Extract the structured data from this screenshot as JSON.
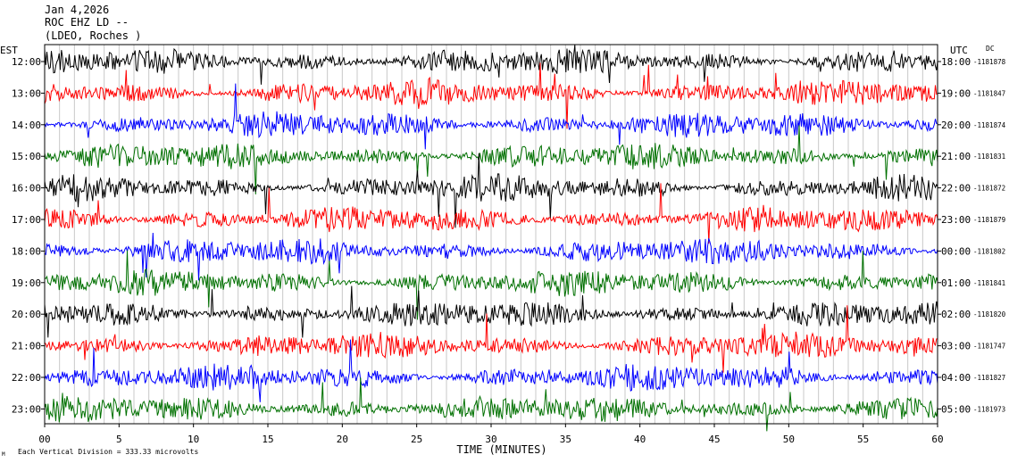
{
  "header": {
    "date": "Jan 4,2026",
    "station": "ROC EHZ LD --",
    "location": "(LDEO, Roches   )"
  },
  "left_axis_label": "EST",
  "right_axis_label": "UTC",
  "dc_label": "DC",
  "footer_note": "Each Vertical Division =  333.33 microvolts",
  "corner_mark": "M",
  "chart_data": {
    "type": "line",
    "xlabel": "TIME (MINUTES)",
    "xlim": [
      0,
      60
    ],
    "x_ticks": [
      "00",
      "5",
      "10",
      "15",
      "20",
      "25",
      "30",
      "35",
      "40",
      "45",
      "50",
      "55",
      "60"
    ],
    "grid": true,
    "series_colors": [
      "#000000",
      "#ff0000",
      "#0000ff",
      "#007000"
    ],
    "rows": [
      {
        "est": "12:00",
        "utc": "18:00",
        "dc": "-1181878"
      },
      {
        "est": "13:00",
        "utc": "19:00",
        "dc": "-1181847"
      },
      {
        "est": "14:00",
        "utc": "20:00",
        "dc": "-1181874"
      },
      {
        "est": "15:00",
        "utc": "21:00",
        "dc": "-1181831"
      },
      {
        "est": "16:00",
        "utc": "22:00",
        "dc": "-1181872"
      },
      {
        "est": "17:00",
        "utc": "23:00",
        "dc": "-1181879"
      },
      {
        "est": "18:00",
        "utc": "00:00",
        "dc": "-1181802"
      },
      {
        "est": "19:00",
        "utc": "01:00",
        "dc": "-1181841"
      },
      {
        "est": "20:00",
        "utc": "02:00",
        "dc": "-1181820"
      },
      {
        "est": "21:00",
        "utc": "03:00",
        "dc": "-1181747"
      },
      {
        "est": "22:00",
        "utc": "04:00",
        "dc": "-1181827"
      },
      {
        "est": "23:00",
        "utc": "05:00",
        "dc": "-1181973"
      }
    ]
  }
}
